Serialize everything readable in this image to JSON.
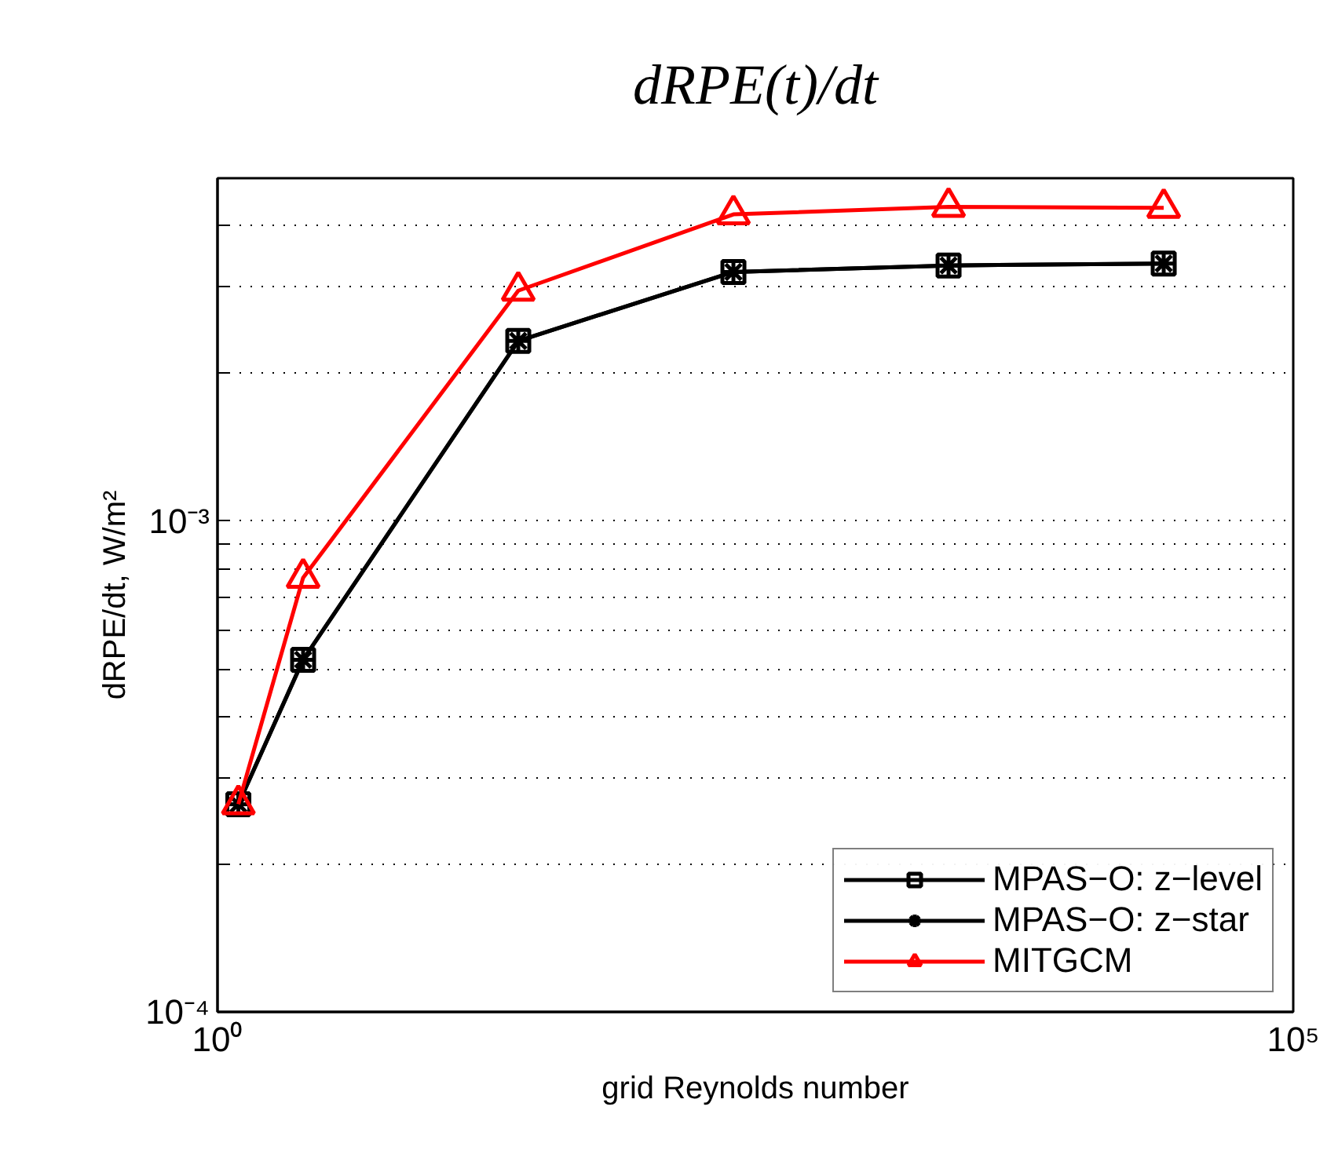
{
  "chart_data": {
    "type": "line",
    "title": "dRPE(t)/dt",
    "xlabel": "grid Reynolds number",
    "ylabel": "dRPE/dt, W/m²",
    "log": "xy",
    "grid": "y",
    "legend": "bottom right",
    "line_style": "solid",
    "x": [
      1.25,
      2.5,
      25,
      250,
      2500,
      25000
    ],
    "xlim": [
      1,
      100000
    ],
    "xticks": [
      {
        "value": 1,
        "label": "10⁰"
      },
      {
        "value": 100000,
        "label": "10⁵"
      }
    ],
    "ylim": [
      0.0001,
      0.005
    ],
    "yticks": [
      {
        "value": 0.0001,
        "label": "10⁻⁴"
      },
      {
        "value": 0.0002,
        "label": null
      },
      {
        "value": 0.0003,
        "label": null
      },
      {
        "value": 0.0004,
        "label": null
      },
      {
        "value": 0.0005,
        "label": null
      },
      {
        "value": 0.0006,
        "label": null
      },
      {
        "value": 0.0007,
        "label": null
      },
      {
        "value": 0.0008,
        "label": null
      },
      {
        "value": 0.0009,
        "label": null
      },
      {
        "value": 0.001,
        "label": "10⁻³"
      },
      {
        "value": 0.002,
        "label": null
      },
      {
        "value": 0.003,
        "label": null
      },
      {
        "value": 0.004,
        "label": null
      }
    ],
    "series": [
      {
        "name": "MPAS−O: z−level",
        "color": "#000000",
        "marker": "square",
        "values": [
          0.000265,
          0.000522,
          0.00233,
          0.00322,
          0.00332,
          0.00335
        ]
      },
      {
        "name": "MPAS−O: z−star",
        "color": "#000000",
        "marker": "cross",
        "values": [
          0.000265,
          0.000522,
          0.00233,
          0.00322,
          0.00332,
          0.00335
        ]
      },
      {
        "name": "MITGCM",
        "color": "#ff0000",
        "marker": "triangle",
        "values": [
          0.000265,
          0.000767,
          0.00295,
          0.00422,
          0.00437,
          0.00435
        ]
      }
    ]
  }
}
